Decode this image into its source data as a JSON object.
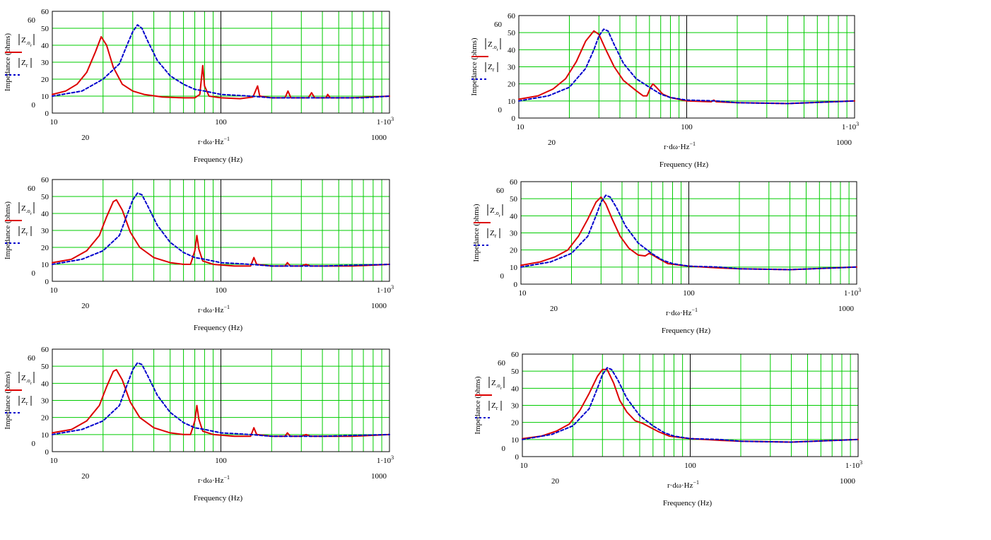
{
  "labels": {
    "ylabel": "Impedance (ohms)",
    "expr_above": "r·dω·Hz",
    "expr_exp": "−1",
    "xlabel": "Frequency (Hz)",
    "legend1_main": "Z",
    "legend1_sub1": ".o",
    "legend1_sub2": "r",
    "legend2_main": "Z",
    "legend2_sub": "r"
  },
  "colors": {
    "grid": "#00cc00",
    "series1": "#dd0000",
    "series2": "#0000cc",
    "frame": "#000000"
  },
  "chart_data": [
    {
      "type": "line",
      "x_scale": "log",
      "xlim": [
        10,
        1000
      ],
      "ylim": [
        0,
        60
      ],
      "ytick_labels": [
        "0",
        "10",
        "20",
        "30",
        "40",
        "50",
        "60"
      ],
      "extra_ytick_labels": [
        "0",
        "60"
      ],
      "xtick_labels_major": [
        "10",
        "100",
        "1·10³"
      ],
      "xtick_labels_minor": [
        "20",
        "1000"
      ],
      "series": [
        {
          "key": "Z_o_r",
          "style": "solid",
          "color": "#dd0000",
          "points": [
            [
              10,
              11
            ],
            [
              12,
              13
            ],
            [
              14,
              17
            ],
            [
              16,
              24
            ],
            [
              18,
              36
            ],
            [
              19.5,
              45
            ],
            [
              21,
              40
            ],
            [
              23,
              27
            ],
            [
              26,
              17
            ],
            [
              30,
              13
            ],
            [
              35,
              11
            ],
            [
              45,
              9.5
            ],
            [
              60,
              9
            ],
            [
              70,
              9
            ],
            [
              75,
              11
            ],
            [
              78,
              28
            ],
            [
              80,
              16
            ],
            [
              85,
              10
            ],
            [
              100,
              9
            ],
            [
              130,
              8.5
            ],
            [
              155,
              9.5
            ],
            [
              165,
              16
            ],
            [
              170,
              10
            ],
            [
              200,
              9
            ],
            [
              240,
              9
            ],
            [
              250,
              13
            ],
            [
              260,
              9
            ],
            [
              330,
              9
            ],
            [
              345,
              12
            ],
            [
              360,
              9
            ],
            [
              420,
              9
            ],
            [
              430,
              11
            ],
            [
              445,
              9
            ],
            [
              600,
              9
            ],
            [
              1000,
              10
            ]
          ]
        },
        {
          "key": "Z_r",
          "style": "dashed",
          "color": "#0000cc",
          "points": [
            [
              10,
              10
            ],
            [
              15,
              13
            ],
            [
              20,
              20
            ],
            [
              25,
              29
            ],
            [
              28,
              41
            ],
            [
              30,
              48
            ],
            [
              32,
              52
            ],
            [
              34,
              50
            ],
            [
              37,
              42
            ],
            [
              42,
              31
            ],
            [
              50,
              22
            ],
            [
              60,
              17
            ],
            [
              70,
              14
            ],
            [
              80,
              13
            ],
            [
              100,
              11
            ],
            [
              150,
              10
            ],
            [
              200,
              9
            ],
            [
              400,
              9
            ],
            [
              700,
              9
            ],
            [
              1000,
              10
            ]
          ]
        }
      ]
    },
    {
      "type": "line",
      "x_scale": "log",
      "xlim": [
        10,
        1000
      ],
      "ylim": [
        0,
        60
      ],
      "ytick_labels": [
        "0",
        "10",
        "20",
        "30",
        "40",
        "50",
        "60"
      ],
      "extra_ytick_labels": [
        "0",
        "60"
      ],
      "xtick_labels_major": [
        "10",
        "100",
        "1·10³"
      ],
      "xtick_labels_minor": [
        "20",
        "1000"
      ],
      "series": [
        {
          "key": "Z_o_r",
          "style": "solid",
          "color": "#dd0000",
          "points": [
            [
              10,
              11
            ],
            [
              13,
              13
            ],
            [
              16,
              17
            ],
            [
              19,
              23
            ],
            [
              22,
              33
            ],
            [
              25,
              45
            ],
            [
              28,
              51
            ],
            [
              30,
              49
            ],
            [
              33,
              40
            ],
            [
              37,
              30
            ],
            [
              42,
              22
            ],
            [
              50,
              16
            ],
            [
              55,
              13
            ],
            [
              58,
              13
            ],
            [
              61,
              18
            ],
            [
              63,
              20
            ],
            [
              66,
              18
            ],
            [
              72,
              14
            ],
            [
              80,
              12
            ],
            [
              100,
              10
            ],
            [
              140,
              9.5
            ],
            [
              145,
              10.5
            ],
            [
              150,
              9.5
            ],
            [
              200,
              9
            ],
            [
              400,
              8.5
            ],
            [
              1000,
              10
            ]
          ]
        },
        {
          "key": "Z_r",
          "style": "dashed",
          "color": "#0000cc",
          "points": [
            [
              10,
              10
            ],
            [
              15,
              13
            ],
            [
              20,
              18
            ],
            [
              25,
              29
            ],
            [
              28,
              40
            ],
            [
              30,
              48
            ],
            [
              32,
              52
            ],
            [
              34,
              51
            ],
            [
              37,
              43
            ],
            [
              42,
              32
            ],
            [
              50,
              23
            ],
            [
              60,
              18
            ],
            [
              70,
              14
            ],
            [
              80,
              12
            ],
            [
              100,
              10.5
            ],
            [
              150,
              10
            ],
            [
              200,
              9
            ],
            [
              400,
              8.5
            ],
            [
              1000,
              10
            ]
          ]
        }
      ]
    },
    {
      "type": "line",
      "x_scale": "log",
      "xlim": [
        10,
        1000
      ],
      "ylim": [
        0,
        60
      ],
      "ytick_labels": [
        "0",
        "10",
        "20",
        "30",
        "40",
        "50",
        "60"
      ],
      "extra_ytick_labels": [
        "0",
        "60"
      ],
      "xtick_labels_major": [
        "10",
        "100",
        "1·10³"
      ],
      "xtick_labels_minor": [
        "20",
        "1000"
      ],
      "series": [
        {
          "key": "Z_o_r",
          "style": "solid",
          "color": "#dd0000",
          "points": [
            [
              10,
              11
            ],
            [
              13,
              13
            ],
            [
              16,
              18
            ],
            [
              19,
              27
            ],
            [
              21,
              38
            ],
            [
              23,
              47
            ],
            [
              24,
              48
            ],
            [
              26,
              42
            ],
            [
              29,
              29
            ],
            [
              33,
              20
            ],
            [
              40,
              14
            ],
            [
              50,
              11
            ],
            [
              60,
              10
            ],
            [
              66,
              10
            ],
            [
              70,
              18
            ],
            [
              72,
              27
            ],
            [
              74,
              19
            ],
            [
              78,
              12
            ],
            [
              90,
              10
            ],
            [
              120,
              9
            ],
            [
              150,
              9
            ],
            [
              157,
              14
            ],
            [
              163,
              10
            ],
            [
              200,
              9
            ],
            [
              240,
              9
            ],
            [
              248,
              11
            ],
            [
              258,
              9
            ],
            [
              300,
              9
            ],
            [
              320,
              10
            ],
            [
              340,
              9
            ],
            [
              600,
              9
            ],
            [
              1000,
              10
            ]
          ]
        },
        {
          "key": "Z_r",
          "style": "dashed",
          "color": "#0000cc",
          "points": [
            [
              10,
              10
            ],
            [
              15,
              13
            ],
            [
              20,
              18
            ],
            [
              25,
              27
            ],
            [
              28,
              40
            ],
            [
              30,
              48
            ],
            [
              32,
              52
            ],
            [
              34,
              51
            ],
            [
              37,
              44
            ],
            [
              42,
              33
            ],
            [
              50,
              23
            ],
            [
              60,
              17
            ],
            [
              70,
              14
            ],
            [
              80,
              13
            ],
            [
              100,
              11
            ],
            [
              150,
              10
            ],
            [
              200,
              9
            ],
            [
              400,
              9
            ],
            [
              1000,
              10
            ]
          ]
        }
      ]
    },
    {
      "type": "line",
      "x_scale": "log",
      "xlim": [
        10,
        1000
      ],
      "ylim": [
        0,
        60
      ],
      "ytick_labels": [
        "0",
        "10",
        "20",
        "30",
        "40",
        "50",
        "60"
      ],
      "extra_ytick_labels": [
        "0",
        "60"
      ],
      "xtick_labels_major": [
        "10",
        "100",
        "1·10³"
      ],
      "xtick_labels_minor": [
        "20",
        "1000"
      ],
      "series": [
        {
          "key": "Z_o_r",
          "style": "solid",
          "color": "#dd0000",
          "points": [
            [
              10,
              11
            ],
            [
              13,
              13
            ],
            [
              16,
              16
            ],
            [
              19,
              20
            ],
            [
              22,
              28
            ],
            [
              25,
              38
            ],
            [
              28,
              48
            ],
            [
              30,
              51
            ],
            [
              32,
              47
            ],
            [
              35,
              38
            ],
            [
              39,
              28
            ],
            [
              44,
              21
            ],
            [
              50,
              17
            ],
            [
              55,
              16.5
            ],
            [
              58,
              18
            ],
            [
              61,
              17
            ],
            [
              66,
              15
            ],
            [
              75,
              12
            ],
            [
              100,
              10.5
            ],
            [
              150,
              9.5
            ],
            [
              200,
              9
            ],
            [
              400,
              8.5
            ],
            [
              1000,
              10
            ]
          ]
        },
        {
          "key": "Z_r",
          "style": "dashed",
          "color": "#0000cc",
          "points": [
            [
              10,
              10
            ],
            [
              15,
              13
            ],
            [
              20,
              18
            ],
            [
              25,
              28
            ],
            [
              28,
              40
            ],
            [
              30,
              48
            ],
            [
              32,
              52
            ],
            [
              34,
              51
            ],
            [
              37,
              45
            ],
            [
              42,
              34
            ],
            [
              50,
              24
            ],
            [
              60,
              18
            ],
            [
              70,
              14
            ],
            [
              80,
              12
            ],
            [
              100,
              10.5
            ],
            [
              150,
              10
            ],
            [
              200,
              9
            ],
            [
              400,
              8.5
            ],
            [
              1000,
              10
            ]
          ]
        }
      ]
    },
    {
      "type": "line",
      "x_scale": "log",
      "xlim": [
        10,
        1000
      ],
      "ylim": [
        0,
        60
      ],
      "ytick_labels": [
        "0",
        "10",
        "20",
        "30",
        "40",
        "50",
        "60"
      ],
      "extra_ytick_labels": [
        "0",
        "60"
      ],
      "xtick_labels_major": [
        "10",
        "100",
        "1·10³"
      ],
      "xtick_labels_minor": [
        "20",
        "1000"
      ],
      "series": [
        {
          "key": "Z_o_r",
          "style": "solid",
          "color": "#dd0000",
          "points": [
            [
              10,
              10.5
            ],
            [
              13,
              12
            ],
            [
              16,
              15
            ],
            [
              19,
              19
            ],
            [
              22,
              27
            ],
            [
              25,
              37
            ],
            [
              28,
              47
            ],
            [
              30,
              51
            ],
            [
              32,
              51
            ],
            [
              35,
              43
            ],
            [
              38,
              33
            ],
            [
              42,
              26
            ],
            [
              47,
              21
            ],
            [
              52,
              19.5
            ],
            [
              58,
              17
            ],
            [
              65,
              14.5
            ],
            [
              75,
              12
            ],
            [
              100,
              10.5
            ],
            [
              150,
              9.5
            ],
            [
              200,
              9
            ],
            [
              400,
              8.5
            ],
            [
              1000,
              10
            ]
          ]
        },
        {
          "key": "Z_r",
          "style": "dashed",
          "color": "#0000cc",
          "points": [
            [
              10,
              10
            ],
            [
              15,
              13
            ],
            [
              20,
              18
            ],
            [
              25,
              28
            ],
            [
              28,
              40
            ],
            [
              30,
              48
            ],
            [
              32,
              52
            ],
            [
              34,
              51
            ],
            [
              37,
              45
            ],
            [
              42,
              34
            ],
            [
              50,
              24
            ],
            [
              60,
              18
            ],
            [
              70,
              14
            ],
            [
              80,
              12
            ],
            [
              100,
              10.5
            ],
            [
              150,
              10
            ],
            [
              200,
              9
            ],
            [
              400,
              8.5
            ],
            [
              1000,
              10
            ]
          ]
        }
      ]
    }
  ]
}
